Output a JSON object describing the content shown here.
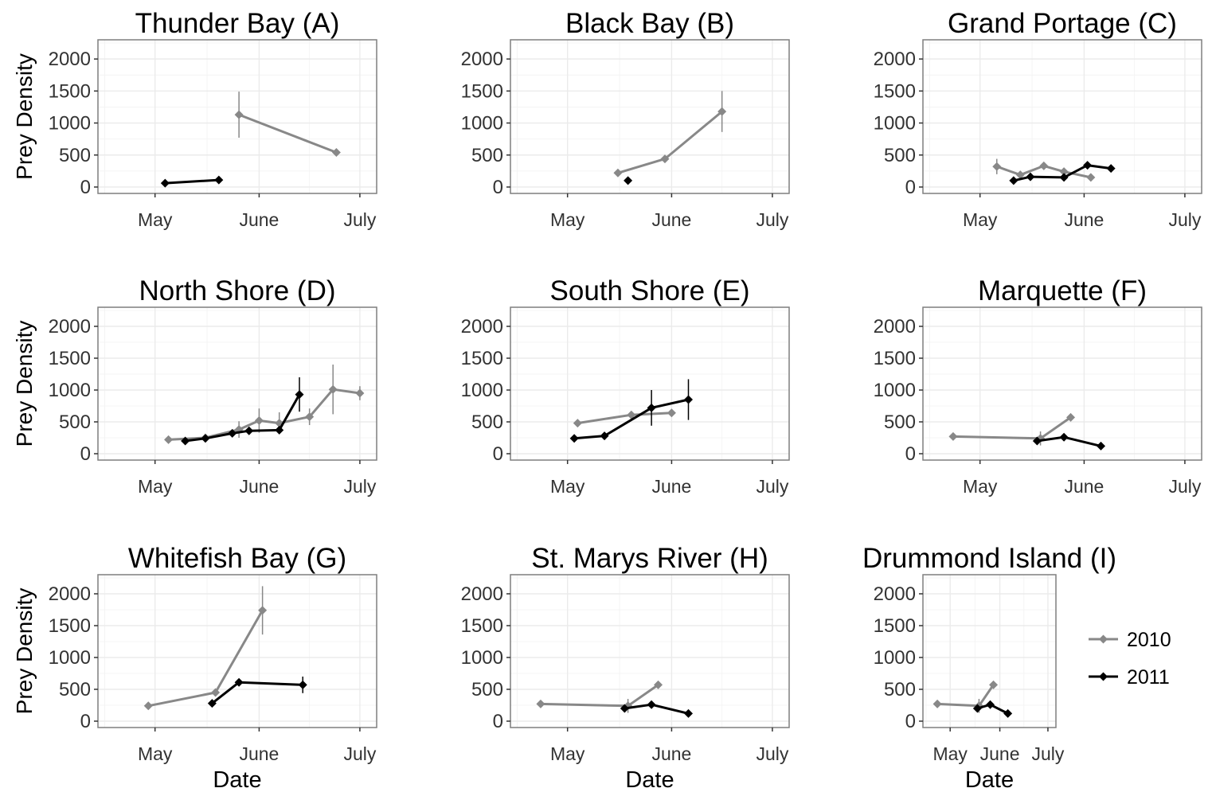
{
  "legend": {
    "placement": "right",
    "entries": [
      {
        "label": "2010",
        "color": "#888888"
      },
      {
        "label": "2011",
        "color": "#000000"
      }
    ]
  },
  "colors": {
    "series_2010": "#888888",
    "series_2011": "#000000",
    "grid": "#ebebeb",
    "panel_border": "#7f7f7f"
  },
  "chart_data": [
    {
      "type": "line",
      "title": "Thunder Bay (A)",
      "ylabel": "Prey Density",
      "xlabel": "",
      "x_ticks": [
        "May",
        "June",
        "July"
      ],
      "y_ticks": [
        0,
        500,
        1000,
        1500,
        2000
      ],
      "xlim": [
        "2010-04-14",
        "2010-07-06"
      ],
      "ylim": [
        -100,
        2300
      ],
      "grid": true,
      "series": [
        {
          "name": "2010",
          "points": [
            {
              "x": "2010-05-26",
              "y": 1130,
              "err": 360
            },
            {
              "x": "2010-06-24",
              "y": 540,
              "err": 0
            }
          ]
        },
        {
          "name": "2011",
          "points": [
            {
              "x": "2010-05-04",
              "y": 60,
              "err": 0
            },
            {
              "x": "2010-05-20",
              "y": 110,
              "err": 0
            }
          ]
        }
      ]
    },
    {
      "type": "line",
      "title": "Black Bay (B)",
      "ylabel": "",
      "xlabel": "",
      "x_ticks": [
        "May",
        "June",
        "July"
      ],
      "y_ticks": [
        0,
        500,
        1000,
        1500,
        2000
      ],
      "xlim": [
        "2010-04-14",
        "2010-07-06"
      ],
      "ylim": [
        -100,
        2300
      ],
      "grid": true,
      "series": [
        {
          "name": "2010",
          "points": [
            {
              "x": "2010-05-16",
              "y": 220,
              "err": 0
            },
            {
              "x": "2010-05-30",
              "y": 440,
              "err": 0
            },
            {
              "x": "2010-06-16",
              "y": 1180,
              "err": 320
            }
          ]
        },
        {
          "name": "2011",
          "points": [
            {
              "x": "2010-05-19",
              "y": 100,
              "err": 0
            }
          ]
        }
      ]
    },
    {
      "type": "line",
      "title": "Grand Portage (C)",
      "ylabel": "",
      "xlabel": "",
      "x_ticks": [
        "May",
        "June",
        "July"
      ],
      "y_ticks": [
        0,
        500,
        1000,
        1500,
        2000
      ],
      "xlim": [
        "2010-04-14",
        "2010-07-06"
      ],
      "ylim": [
        -100,
        2300
      ],
      "grid": true,
      "series": [
        {
          "name": "2010",
          "points": [
            {
              "x": "2010-05-06",
              "y": 320,
              "err": 120
            },
            {
              "x": "2010-05-13",
              "y": 190,
              "err": 0
            },
            {
              "x": "2010-05-20",
              "y": 330,
              "err": 0
            },
            {
              "x": "2010-05-26",
              "y": 240,
              "err": 0
            },
            {
              "x": "2010-06-03",
              "y": 150,
              "err": 0
            }
          ]
        },
        {
          "name": "2011",
          "points": [
            {
              "x": "2010-05-11",
              "y": 100,
              "err": 0
            },
            {
              "x": "2010-05-16",
              "y": 160,
              "err": 0
            },
            {
              "x": "2010-05-26",
              "y": 150,
              "err": 0
            },
            {
              "x": "2010-06-02",
              "y": 340,
              "err": 0
            },
            {
              "x": "2010-06-09",
              "y": 290,
              "err": 0
            }
          ]
        }
      ]
    },
    {
      "type": "line",
      "title": "North Shore (D)",
      "ylabel": "Prey Density",
      "xlabel": "",
      "x_ticks": [
        "May",
        "June",
        "July"
      ],
      "y_ticks": [
        0,
        500,
        1000,
        1500,
        2000
      ],
      "xlim": [
        "2010-04-14",
        "2010-07-06"
      ],
      "ylim": [
        -100,
        2300
      ],
      "grid": true,
      "series": [
        {
          "name": "2010",
          "points": [
            {
              "x": "2010-05-05",
              "y": 220,
              "err": 0
            },
            {
              "x": "2010-05-16",
              "y": 250,
              "err": 0
            },
            {
              "x": "2010-05-26",
              "y": 380,
              "err": 130
            },
            {
              "x": "2010-06-01",
              "y": 520,
              "err": 190
            },
            {
              "x": "2010-06-07",
              "y": 480,
              "err": 170
            },
            {
              "x": "2010-06-16",
              "y": 580,
              "err": 130
            },
            {
              "x": "2010-06-23",
              "y": 1010,
              "err": 390
            },
            {
              "x": "2010-07-01",
              "y": 950,
              "err": 110
            }
          ]
        },
        {
          "name": "2011",
          "points": [
            {
              "x": "2010-05-10",
              "y": 200,
              "err": 0
            },
            {
              "x": "2010-05-16",
              "y": 240,
              "err": 0
            },
            {
              "x": "2010-05-24",
              "y": 320,
              "err": 0
            },
            {
              "x": "2010-05-29",
              "y": 360,
              "err": 0
            },
            {
              "x": "2010-06-07",
              "y": 370,
              "err": 0
            },
            {
              "x": "2010-06-13",
              "y": 930,
              "err": 270
            }
          ]
        }
      ]
    },
    {
      "type": "line",
      "title": "South Shore (E)",
      "ylabel": "",
      "xlabel": "",
      "x_ticks": [
        "May",
        "June",
        "July"
      ],
      "y_ticks": [
        0,
        500,
        1000,
        1500,
        2000
      ],
      "xlim": [
        "2010-04-14",
        "2010-07-06"
      ],
      "ylim": [
        -100,
        2300
      ],
      "grid": true,
      "series": [
        {
          "name": "2010",
          "points": [
            {
              "x": "2010-05-04",
              "y": 480,
              "err": 0
            },
            {
              "x": "2010-05-20",
              "y": 610,
              "err": 0
            },
            {
              "x": "2010-06-01",
              "y": 640,
              "err": 0
            }
          ]
        },
        {
          "name": "2011",
          "points": [
            {
              "x": "2010-05-03",
              "y": 240,
              "err": 0
            },
            {
              "x": "2010-05-12",
              "y": 280,
              "err": 0
            },
            {
              "x": "2010-05-26",
              "y": 720,
              "err": 280
            },
            {
              "x": "2010-06-06",
              "y": 850,
              "err": 320
            }
          ]
        }
      ]
    },
    {
      "type": "line",
      "title": "Marquette (F)",
      "ylabel": "",
      "xlabel": "",
      "x_ticks": [
        "May",
        "June",
        "July"
      ],
      "y_ticks": [
        0,
        500,
        1000,
        1500,
        2000
      ],
      "xlim": [
        "2010-04-14",
        "2010-07-06"
      ],
      "ylim": [
        -100,
        2300
      ],
      "grid": true,
      "series": [
        {
          "name": "2010",
          "points": [
            {
              "x": "2010-04-23",
              "y": 270,
              "err": 0
            },
            {
              "x": "2010-05-19",
              "y": 240,
              "err": 110
            },
            {
              "x": "2010-05-28",
              "y": 570,
              "err": 0
            }
          ]
        },
        {
          "name": "2011",
          "points": [
            {
              "x": "2010-05-18",
              "y": 200,
              "err": 0
            },
            {
              "x": "2010-05-26",
              "y": 260,
              "err": 0
            },
            {
              "x": "2010-06-06",
              "y": 120,
              "err": 0
            }
          ]
        }
      ]
    },
    {
      "type": "line",
      "title": "Whitefish Bay (G)",
      "ylabel": "Prey Density",
      "xlabel": "Date",
      "x_ticks": [
        "May",
        "June",
        "July"
      ],
      "y_ticks": [
        0,
        500,
        1000,
        1500,
        2000
      ],
      "xlim": [
        "2010-04-14",
        "2010-07-06"
      ],
      "ylim": [
        -100,
        2300
      ],
      "grid": true,
      "series": [
        {
          "name": "2010",
          "points": [
            {
              "x": "2010-04-29",
              "y": 240,
              "err": 0
            },
            {
              "x": "2010-05-19",
              "y": 450,
              "err": 0
            },
            {
              "x": "2010-06-02",
              "y": 1740,
              "err": 380
            }
          ]
        },
        {
          "name": "2011",
          "points": [
            {
              "x": "2010-05-18",
              "y": 280,
              "err": 0
            },
            {
              "x": "2010-05-26",
              "y": 610,
              "err": 0
            },
            {
              "x": "2010-06-14",
              "y": 570,
              "err": 130
            }
          ]
        }
      ]
    },
    {
      "type": "line",
      "title": "St. Marys River (H)",
      "ylabel": "",
      "xlabel": "Date",
      "x_ticks": [
        "May",
        "June",
        "July"
      ],
      "y_ticks": [
        0,
        500,
        1000,
        1500,
        2000
      ],
      "xlim": [
        "2010-04-14",
        "2010-07-06"
      ],
      "ylim": [
        -100,
        2300
      ],
      "grid": true,
      "series": [
        {
          "name": "2010",
          "points": [
            {
              "x": "2010-04-23",
              "y": 270,
              "err": 0
            },
            {
              "x": "2010-05-19",
              "y": 240,
              "err": 110
            },
            {
              "x": "2010-05-28",
              "y": 570,
              "err": 0
            }
          ]
        },
        {
          "name": "2011",
          "points": [
            {
              "x": "2010-05-18",
              "y": 200,
              "err": 0
            },
            {
              "x": "2010-05-26",
              "y": 260,
              "err": 0
            },
            {
              "x": "2010-06-06",
              "y": 120,
              "err": 0
            }
          ]
        }
      ]
    },
    {
      "type": "line",
      "title": "Drummond Island (I)",
      "ylabel": "",
      "xlabel": "Date",
      "x_ticks": [
        "May",
        "June",
        "July"
      ],
      "y_ticks": [
        0,
        500,
        1000,
        1500,
        2000
      ],
      "xlim": [
        "2010-04-14",
        "2010-07-06"
      ],
      "ylim": [
        -100,
        2300
      ],
      "grid": true,
      "series": [
        {
          "name": "2010",
          "points": [
            {
              "x": "2010-04-23",
              "y": 270,
              "err": 0
            },
            {
              "x": "2010-05-19",
              "y": 240,
              "err": 110
            },
            {
              "x": "2010-05-28",
              "y": 570,
              "err": 0
            }
          ]
        },
        {
          "name": "2011",
          "points": [
            {
              "x": "2010-05-18",
              "y": 200,
              "err": 0
            },
            {
              "x": "2010-05-26",
              "y": 260,
              "err": 0
            },
            {
              "x": "2010-06-06",
              "y": 120,
              "err": 0
            }
          ]
        }
      ]
    }
  ]
}
